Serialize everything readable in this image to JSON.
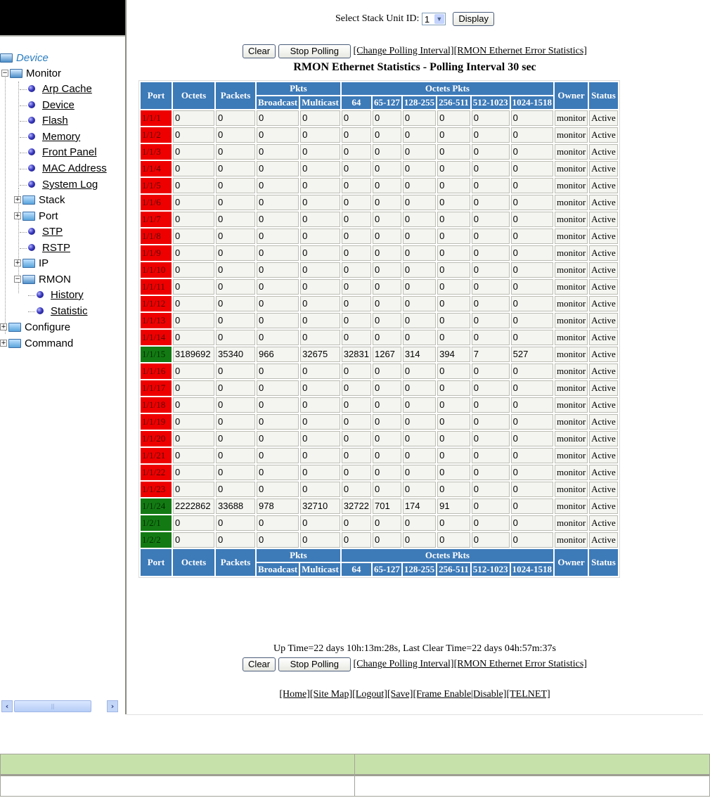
{
  "sidebar": {
    "root": "Device",
    "monitor": "Monitor",
    "monitor_items": [
      "Arp Cache",
      "Device",
      "Flash",
      "Memory",
      "Front Panel",
      "MAC Address",
      "System Log"
    ],
    "stack": "Stack",
    "port": "Port",
    "stp": "STP",
    "rstp": "RSTP",
    "ip": "IP",
    "rmon": "RMON",
    "rmon_items": [
      "History",
      "Statistic"
    ],
    "configure": "Configure",
    "command": "Command",
    "expand_plus": "+",
    "expand_minus": "−",
    "scroll_left": "‹",
    "scroll_right": "›",
    "scroll_grip": "|||"
  },
  "main": {
    "select_label": "Select Stack Unit ID:",
    "stack_unit_value": "1",
    "display_button": "Display",
    "clear_button": "Clear",
    "stop_polling_button": "Stop Polling",
    "change_polling_link": "[Change Polling Interval]",
    "error_stats_link": "[RMON Ethernet Error Statistics]",
    "title": "RMON Ethernet Statistics - Polling Interval 30 sec",
    "uptime": "Up Time=22 days 10h:13m:28s, Last Clear Time=22 days 04h:57m:37s",
    "footer_links": [
      "[Home]",
      "[Site Map]",
      "[Logout]",
      "[Save]",
      "[Frame Enable",
      "|Disable]",
      "[TELNET]"
    ]
  },
  "table": {
    "headers": {
      "port": "Port",
      "octets": "Octets",
      "packets": "Packets",
      "pkts_group": "Pkts",
      "broadcast": "Broadcast",
      "multicast": "Multicast",
      "octets_pkts_group": "Octets Pkts",
      "sizes": [
        "64",
        "65-127",
        "128-255",
        "256-511",
        "512-1023",
        "1024-1518"
      ],
      "owner": "Owner",
      "status": "Status"
    },
    "colors": {
      "down": "#ee0000",
      "up": "#137a13",
      "header": "#3d7ab8"
    },
    "rows": [
      {
        "port": "1/1/1",
        "state": "down",
        "values": [
          "0",
          "0",
          "0",
          "0",
          "0",
          "0",
          "0",
          "0",
          "0",
          "0"
        ],
        "owner": "monitor",
        "status": "Active"
      },
      {
        "port": "1/1/2",
        "state": "down",
        "values": [
          "0",
          "0",
          "0",
          "0",
          "0",
          "0",
          "0",
          "0",
          "0",
          "0"
        ],
        "owner": "monitor",
        "status": "Active"
      },
      {
        "port": "1/1/3",
        "state": "down",
        "values": [
          "0",
          "0",
          "0",
          "0",
          "0",
          "0",
          "0",
          "0",
          "0",
          "0"
        ],
        "owner": "monitor",
        "status": "Active"
      },
      {
        "port": "1/1/4",
        "state": "down",
        "values": [
          "0",
          "0",
          "0",
          "0",
          "0",
          "0",
          "0",
          "0",
          "0",
          "0"
        ],
        "owner": "monitor",
        "status": "Active"
      },
      {
        "port": "1/1/5",
        "state": "down",
        "values": [
          "0",
          "0",
          "0",
          "0",
          "0",
          "0",
          "0",
          "0",
          "0",
          "0"
        ],
        "owner": "monitor",
        "status": "Active"
      },
      {
        "port": "1/1/6",
        "state": "down",
        "values": [
          "0",
          "0",
          "0",
          "0",
          "0",
          "0",
          "0",
          "0",
          "0",
          "0"
        ],
        "owner": "monitor",
        "status": "Active"
      },
      {
        "port": "1/1/7",
        "state": "down",
        "values": [
          "0",
          "0",
          "0",
          "0",
          "0",
          "0",
          "0",
          "0",
          "0",
          "0"
        ],
        "owner": "monitor",
        "status": "Active"
      },
      {
        "port": "1/1/8",
        "state": "down",
        "values": [
          "0",
          "0",
          "0",
          "0",
          "0",
          "0",
          "0",
          "0",
          "0",
          "0"
        ],
        "owner": "monitor",
        "status": "Active"
      },
      {
        "port": "1/1/9",
        "state": "down",
        "values": [
          "0",
          "0",
          "0",
          "0",
          "0",
          "0",
          "0",
          "0",
          "0",
          "0"
        ],
        "owner": "monitor",
        "status": "Active"
      },
      {
        "port": "1/1/10",
        "state": "down",
        "values": [
          "0",
          "0",
          "0",
          "0",
          "0",
          "0",
          "0",
          "0",
          "0",
          "0"
        ],
        "owner": "monitor",
        "status": "Active"
      },
      {
        "port": "1/1/11",
        "state": "down",
        "values": [
          "0",
          "0",
          "0",
          "0",
          "0",
          "0",
          "0",
          "0",
          "0",
          "0"
        ],
        "owner": "monitor",
        "status": "Active"
      },
      {
        "port": "1/1/12",
        "state": "down",
        "values": [
          "0",
          "0",
          "0",
          "0",
          "0",
          "0",
          "0",
          "0",
          "0",
          "0"
        ],
        "owner": "monitor",
        "status": "Active"
      },
      {
        "port": "1/1/13",
        "state": "down",
        "values": [
          "0",
          "0",
          "0",
          "0",
          "0",
          "0",
          "0",
          "0",
          "0",
          "0"
        ],
        "owner": "monitor",
        "status": "Active"
      },
      {
        "port": "1/1/14",
        "state": "down",
        "values": [
          "0",
          "0",
          "0",
          "0",
          "0",
          "0",
          "0",
          "0",
          "0",
          "0"
        ],
        "owner": "monitor",
        "status": "Active"
      },
      {
        "port": "1/1/15",
        "state": "up",
        "values": [
          "3189692",
          "35340",
          "966",
          "32675",
          "32831",
          "1267",
          "314",
          "394",
          "7",
          "527"
        ],
        "owner": "monitor",
        "status": "Active"
      },
      {
        "port": "1/1/16",
        "state": "down",
        "values": [
          "0",
          "0",
          "0",
          "0",
          "0",
          "0",
          "0",
          "0",
          "0",
          "0"
        ],
        "owner": "monitor",
        "status": "Active"
      },
      {
        "port": "1/1/17",
        "state": "down",
        "values": [
          "0",
          "0",
          "0",
          "0",
          "0",
          "0",
          "0",
          "0",
          "0",
          "0"
        ],
        "owner": "monitor",
        "status": "Active"
      },
      {
        "port": "1/1/18",
        "state": "down",
        "values": [
          "0",
          "0",
          "0",
          "0",
          "0",
          "0",
          "0",
          "0",
          "0",
          "0"
        ],
        "owner": "monitor",
        "status": "Active"
      },
      {
        "port": "1/1/19",
        "state": "down",
        "values": [
          "0",
          "0",
          "0",
          "0",
          "0",
          "0",
          "0",
          "0",
          "0",
          "0"
        ],
        "owner": "monitor",
        "status": "Active"
      },
      {
        "port": "1/1/20",
        "state": "down",
        "values": [
          "0",
          "0",
          "0",
          "0",
          "0",
          "0",
          "0",
          "0",
          "0",
          "0"
        ],
        "owner": "monitor",
        "status": "Active"
      },
      {
        "port": "1/1/21",
        "state": "down",
        "values": [
          "0",
          "0",
          "0",
          "0",
          "0",
          "0",
          "0",
          "0",
          "0",
          "0"
        ],
        "owner": "monitor",
        "status": "Active"
      },
      {
        "port": "1/1/22",
        "state": "down",
        "values": [
          "0",
          "0",
          "0",
          "0",
          "0",
          "0",
          "0",
          "0",
          "0",
          "0"
        ],
        "owner": "monitor",
        "status": "Active"
      },
      {
        "port": "1/1/23",
        "state": "down",
        "values": [
          "0",
          "0",
          "0",
          "0",
          "0",
          "0",
          "0",
          "0",
          "0",
          "0"
        ],
        "owner": "monitor",
        "status": "Active"
      },
      {
        "port": "1/1/24",
        "state": "up",
        "values": [
          "2222862",
          "33688",
          "978",
          "32710",
          "32722",
          "701",
          "174",
          "91",
          "0",
          "0"
        ],
        "owner": "monitor",
        "status": "Active"
      },
      {
        "port": "1/2/1",
        "state": "up",
        "values": [
          "0",
          "0",
          "0",
          "0",
          "0",
          "0",
          "0",
          "0",
          "0",
          "0"
        ],
        "owner": "monitor",
        "status": "Active"
      },
      {
        "port": "1/2/2",
        "state": "up",
        "values": [
          "0",
          "0",
          "0",
          "0",
          "0",
          "0",
          "0",
          "0",
          "0",
          "0"
        ],
        "owner": "monitor",
        "status": "Active"
      }
    ]
  }
}
